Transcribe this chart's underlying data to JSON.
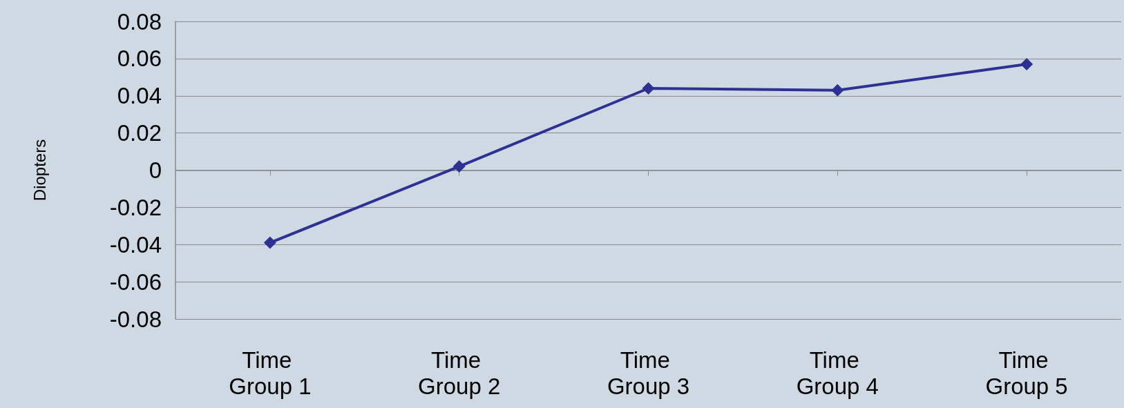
{
  "chart_data": {
    "type": "line",
    "ylabel": "Diopters",
    "categories": [
      "Time Group 1",
      "Time Group 2",
      "Time Group 3",
      "Time Group 4",
      "Time Group 5"
    ],
    "series": [
      {
        "color": "#2e3192",
        "values": [
          -0.039,
          0.002,
          0.044,
          0.043,
          0.057
        ]
      }
    ],
    "ylim": [
      -0.08,
      0.08
    ],
    "yticks": [
      -0.08,
      -0.06,
      -0.04,
      -0.02,
      0,
      0.02,
      0.04,
      0.06,
      0.08
    ],
    "grid": "y",
    "marker": "diamond",
    "line_style": "solid"
  }
}
